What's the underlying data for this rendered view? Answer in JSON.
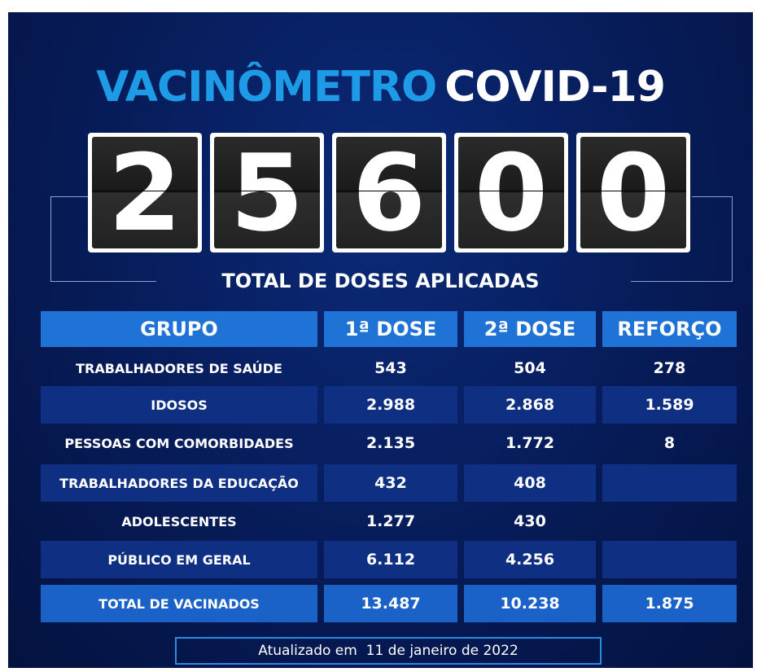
{
  "title": {
    "part1": "VACINÔMETRO",
    "part2": "COVID-19"
  },
  "counter": {
    "digits": [
      "2",
      "5",
      "6",
      "0",
      "0"
    ],
    "caption": "TOTAL DE DOSES APLICADAS"
  },
  "table": {
    "header": [
      "GRUPO",
      "1ª DOSE",
      "2ª DOSE",
      "REFORÇO"
    ],
    "rows": [
      [
        "TRABALHADORES DE SAÚDE",
        "543",
        "504",
        "278"
      ],
      [
        "IDOSOS",
        "2.988",
        "2.868",
        "1.589"
      ],
      [
        "PESSOAS COM COMORBIDADES",
        "2.135",
        "1.772",
        "8"
      ],
      [
        "TRABALHADORES DA EDUCAÇÃO",
        "432",
        "408",
        null
      ],
      [
        "ADOLESCENTES",
        "1.277",
        "430",
        null
      ],
      [
        "PÚBLICO EM GERAL",
        "6.112",
        "4.256",
        null
      ]
    ],
    "total": [
      "TOTAL DE VACINADOS",
      "13.487",
      "10.238",
      "1.875"
    ]
  },
  "footer": "Atualizado em  11 de janeiro de 2022"
}
